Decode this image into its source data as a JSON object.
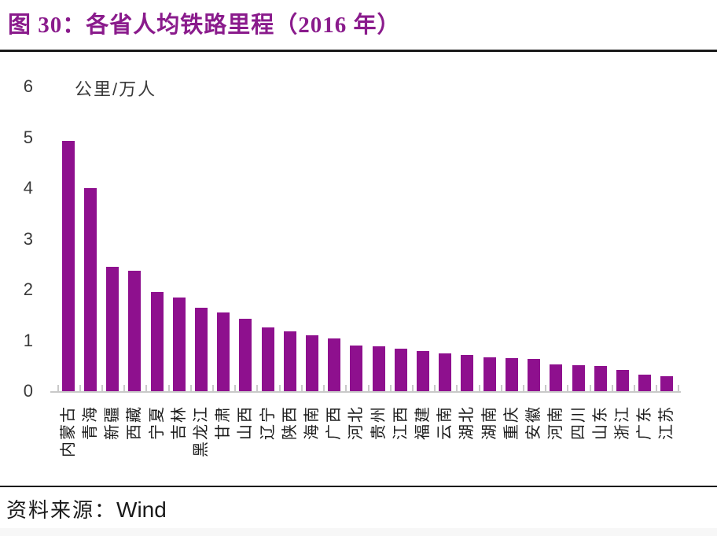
{
  "page": {
    "title": "图 30：各省人均铁路里程（2016 年）",
    "source_label": "资料来源：",
    "source_value": "Wind"
  },
  "colors": {
    "title": "#8A1B8C",
    "bar": "#8E108E",
    "axis": "#C9C9C9",
    "rule": "#1A1A1A",
    "tick_text": "#3A3A3A"
  },
  "chart_data": {
    "type": "bar",
    "title": "各省人均铁路里程（2016 年）",
    "xlabel": "",
    "ylabel": "公里/万人",
    "unit_label": "公里/万人",
    "ylim": [
      0,
      6
    ],
    "yticks": [
      0,
      1,
      2,
      3,
      4,
      5,
      6
    ],
    "grid": false,
    "legend_position": "none",
    "bar_color": "#8E108E",
    "categories": [
      "内蒙古",
      "青海",
      "新疆",
      "西藏",
      "宁夏",
      "吉林",
      "黑龙江",
      "甘肃",
      "山西",
      "辽宁",
      "陕西",
      "海南",
      "广西",
      "河北",
      "贵州",
      "江西",
      "福建",
      "云南",
      "湖北",
      "湖南",
      "重庆",
      "安徽",
      "河南",
      "四川",
      "山东",
      "浙江",
      "广东",
      "江苏"
    ],
    "values": [
      4.93,
      4.0,
      2.45,
      2.37,
      1.95,
      1.84,
      1.64,
      1.55,
      1.42,
      1.26,
      1.18,
      1.1,
      1.04,
      0.9,
      0.88,
      0.84,
      0.79,
      0.74,
      0.72,
      0.66,
      0.65,
      0.64,
      0.53,
      0.51,
      0.5,
      0.42,
      0.32,
      0.3
    ]
  }
}
